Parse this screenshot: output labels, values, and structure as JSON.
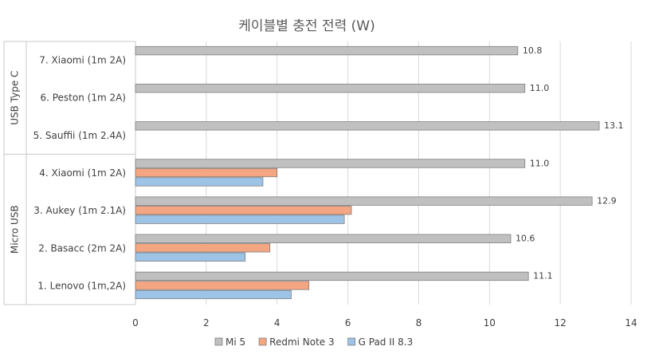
{
  "chart_data": {
    "type": "bar",
    "orientation": "horizontal",
    "title": "케이블별 충전 전력 (W)",
    "xlim": [
      0,
      14
    ],
    "xticks": [
      0,
      2,
      4,
      6,
      8,
      10,
      12,
      14
    ],
    "grid": true,
    "legend_position": "bottom",
    "groups": [
      {
        "name": "USB Type C",
        "categories": [
          "7. Xiaomi (1m 2A)",
          "6. Peston (1m 2A)",
          "5. Sauffii (1m 2.4A)"
        ]
      },
      {
        "name": "Micro USB",
        "categories": [
          "4. Xiaomi (1m 2A)",
          "3. Aukey (1m 2.1A)",
          "2. Basacc (2m 2A)",
          "1. Lenovo (1m,2A)"
        ]
      }
    ],
    "categories": [
      "7. Xiaomi (1m 2A)",
      "6. Peston (1m 2A)",
      "5. Sauffii (1m 2.4A)",
      "4. Xiaomi (1m 2A)",
      "3. Aukey (1m 2.1A)",
      "2. Basacc (2m 2A)",
      "1. Lenovo (1m,2A)"
    ],
    "series": [
      {
        "name": "Mi 5",
        "color": "#c0c0c0",
        "values": [
          10.8,
          11.0,
          13.1,
          11.0,
          12.9,
          10.6,
          11.1
        ],
        "labels": [
          "10.8",
          "11.0",
          "13.1",
          "11.0",
          "12.9",
          "10.6",
          "11.1"
        ]
      },
      {
        "name": "Redmi Note 3",
        "color": "#f4a582",
        "values": [
          null,
          null,
          null,
          4.0,
          6.1,
          3.8,
          4.9
        ]
      },
      {
        "name": "G Pad II 8.3",
        "color": "#9dc3e6",
        "values": [
          null,
          null,
          null,
          3.6,
          5.9,
          3.1,
          4.4
        ]
      }
    ]
  }
}
